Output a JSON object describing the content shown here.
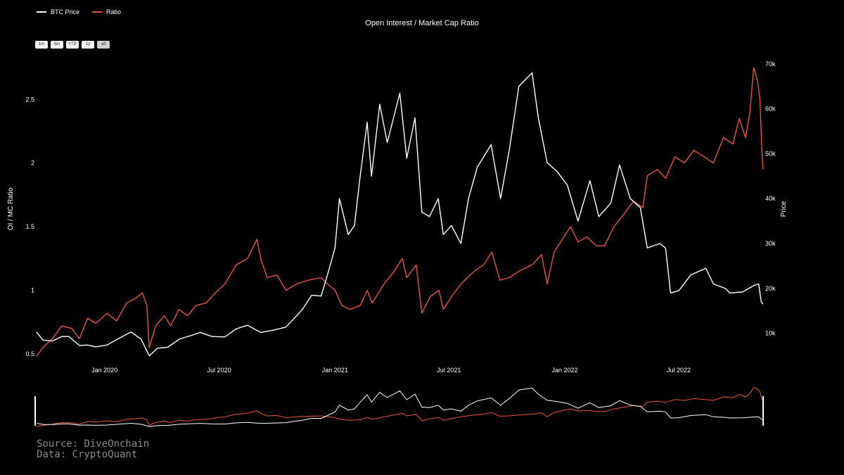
{
  "legend": {
    "btc_label": "BTC Price",
    "ratio_label": "Ratio",
    "btc_color": "#ffffff",
    "ratio_color": "#e8553d"
  },
  "range_buttons": [
    {
      "label": "1m",
      "active": false
    },
    {
      "label": "6m",
      "active": false
    },
    {
      "label": "YTD",
      "active": false
    },
    {
      "label": "1y",
      "active": false
    },
    {
      "label": "all",
      "active": true
    }
  ],
  "source": {
    "line1": "Source: DiveOnchain",
    "line2": "Data: CryptoQuant"
  },
  "chart_data": {
    "type": "line",
    "title": "Open Interest / Market Cap Ratio",
    "ylabel_left": "OI / MC Ratio",
    "ylabel_right": "Price",
    "ylim_left": [
      0.45,
      2.85
    ],
    "ylim_right": [
      4000,
      72000
    ],
    "xlim": [
      "2019-09-15",
      "2022-11-12"
    ],
    "x_ticks": [
      "Jan 2020",
      "Jul 2020",
      "Jan 2021",
      "Jul 2021",
      "Jan 2022",
      "Jul 2022"
    ],
    "y_ticks_left": [
      "0.5",
      "1",
      "1.5",
      "2",
      "2.5"
    ],
    "y_ticks_right": [
      "10k",
      "20k",
      "30k",
      "40k",
      "50k",
      "60k",
      "70k"
    ],
    "grid": false,
    "legend_position": "top-left",
    "has_range_slider": true,
    "series": [
      {
        "name": "BTC Price",
        "axis": "right",
        "color": "#ffffff",
        "points": [
          [
            "2019-09-15",
            10300
          ],
          [
            "2019-09-25",
            8500
          ],
          [
            "2019-10-10",
            8300
          ],
          [
            "2019-10-25",
            9300
          ],
          [
            "2019-11-05",
            9300
          ],
          [
            "2019-11-22",
            7300
          ],
          [
            "2019-12-05",
            7400
          ],
          [
            "2019-12-18",
            7000
          ],
          [
            "2020-01-05",
            7400
          ],
          [
            "2020-01-20",
            8600
          ],
          [
            "2020-02-12",
            10300
          ],
          [
            "2020-02-28",
            8700
          ],
          [
            "2020-03-12",
            5000
          ],
          [
            "2020-03-25",
            6700
          ],
          [
            "2020-04-10",
            6900
          ],
          [
            "2020-04-30",
            8800
          ],
          [
            "2020-05-15",
            9400
          ],
          [
            "2020-06-01",
            10200
          ],
          [
            "2020-06-20",
            9300
          ],
          [
            "2020-07-10",
            9200
          ],
          [
            "2020-07-28",
            11000
          ],
          [
            "2020-08-15",
            11800
          ],
          [
            "2020-09-05",
            10200
          ],
          [
            "2020-09-25",
            10700
          ],
          [
            "2020-10-15",
            11400
          ],
          [
            "2020-10-28",
            13300
          ],
          [
            "2020-11-10",
            15300
          ],
          [
            "2020-11-25",
            18500
          ],
          [
            "2020-12-10",
            18300
          ],
          [
            "2020-12-20",
            23000
          ],
          [
            "2021-01-01",
            29000
          ],
          [
            "2021-01-08",
            40000
          ],
          [
            "2021-01-22",
            32000
          ],
          [
            "2021-02-01",
            34000
          ],
          [
            "2021-02-10",
            45000
          ],
          [
            "2021-02-21",
            57000
          ],
          [
            "2021-02-28",
            45000
          ],
          [
            "2021-03-13",
            61000
          ],
          [
            "2021-03-25",
            52500
          ],
          [
            "2021-04-14",
            63500
          ],
          [
            "2021-04-25",
            49000
          ],
          [
            "2021-05-08",
            58000
          ],
          [
            "2021-05-19",
            37000
          ],
          [
            "2021-05-31",
            36000
          ],
          [
            "2021-06-14",
            40000
          ],
          [
            "2021-06-22",
            32000
          ],
          [
            "2021-07-05",
            34000
          ],
          [
            "2021-07-20",
            30000
          ],
          [
            "2021-08-01",
            40000
          ],
          [
            "2021-08-15",
            47000
          ],
          [
            "2021-09-06",
            52000
          ],
          [
            "2021-09-21",
            40000
          ],
          [
            "2021-10-05",
            51000
          ],
          [
            "2021-10-20",
            65000
          ],
          [
            "2021-11-10",
            68000
          ],
          [
            "2021-11-20",
            58000
          ],
          [
            "2021-12-04",
            48000
          ],
          [
            "2021-12-20",
            46000
          ],
          [
            "2022-01-05",
            43000
          ],
          [
            "2022-01-22",
            35000
          ],
          [
            "2022-02-10",
            44000
          ],
          [
            "2022-02-24",
            36000
          ],
          [
            "2022-03-15",
            39000
          ],
          [
            "2022-03-29",
            47500
          ],
          [
            "2022-04-15",
            40000
          ],
          [
            "2022-05-01",
            38000
          ],
          [
            "2022-05-12",
            29000
          ],
          [
            "2022-06-01",
            30000
          ],
          [
            "2022-06-10",
            29000
          ],
          [
            "2022-06-18",
            19000
          ],
          [
            "2022-07-01",
            19500
          ],
          [
            "2022-07-20",
            23000
          ],
          [
            "2022-08-13",
            24500
          ],
          [
            "2022-08-25",
            21000
          ],
          [
            "2022-09-13",
            20000
          ],
          [
            "2022-09-20",
            19000
          ],
          [
            "2022-10-10",
            19200
          ],
          [
            "2022-10-29",
            20700
          ],
          [
            "2022-11-05",
            21000
          ],
          [
            "2022-11-09",
            17000
          ],
          [
            "2022-11-12",
            16500
          ]
        ]
      },
      {
        "name": "Ratio",
        "axis": "left",
        "color": "#e8553d",
        "points": [
          [
            "2019-09-15",
            0.48
          ],
          [
            "2019-09-25",
            0.55
          ],
          [
            "2019-10-10",
            0.62
          ],
          [
            "2019-10-25",
            0.72
          ],
          [
            "2019-11-10",
            0.7
          ],
          [
            "2019-11-22",
            0.62
          ],
          [
            "2019-12-05",
            0.78
          ],
          [
            "2019-12-18",
            0.74
          ],
          [
            "2020-01-05",
            0.82
          ],
          [
            "2020-01-20",
            0.76
          ],
          [
            "2020-02-05",
            0.9
          ],
          [
            "2020-02-20",
            0.94
          ],
          [
            "2020-03-01",
            0.98
          ],
          [
            "2020-03-08",
            0.88
          ],
          [
            "2020-03-12",
            0.55
          ],
          [
            "2020-03-22",
            0.72
          ],
          [
            "2020-04-05",
            0.8
          ],
          [
            "2020-04-15",
            0.72
          ],
          [
            "2020-04-28",
            0.85
          ],
          [
            "2020-05-12",
            0.8
          ],
          [
            "2020-05-25",
            0.88
          ],
          [
            "2020-06-10",
            0.9
          ],
          [
            "2020-06-25",
            0.98
          ],
          [
            "2020-07-10",
            1.05
          ],
          [
            "2020-07-28",
            1.2
          ],
          [
            "2020-08-15",
            1.25
          ],
          [
            "2020-08-30",
            1.4
          ],
          [
            "2020-09-05",
            1.25
          ],
          [
            "2020-09-15",
            1.1
          ],
          [
            "2020-10-01",
            1.12
          ],
          [
            "2020-10-15",
            1.0
          ],
          [
            "2020-11-01",
            1.05
          ],
          [
            "2020-11-20",
            1.08
          ],
          [
            "2020-12-10",
            1.1
          ],
          [
            "2020-12-20",
            1.05
          ],
          [
            "2021-01-01",
            1.0
          ],
          [
            "2021-01-12",
            0.88
          ],
          [
            "2021-01-25",
            0.85
          ],
          [
            "2021-02-10",
            0.88
          ],
          [
            "2021-02-21",
            1.0
          ],
          [
            "2021-03-01",
            0.9
          ],
          [
            "2021-03-20",
            1.05
          ],
          [
            "2021-04-05",
            1.15
          ],
          [
            "2021-04-18",
            1.25
          ],
          [
            "2021-04-25",
            1.1
          ],
          [
            "2021-05-10",
            1.2
          ],
          [
            "2021-05-19",
            0.82
          ],
          [
            "2021-06-01",
            0.95
          ],
          [
            "2021-06-15",
            1.0
          ],
          [
            "2021-06-22",
            0.85
          ],
          [
            "2021-07-05",
            0.95
          ],
          [
            "2021-07-20",
            1.05
          ],
          [
            "2021-08-10",
            1.15
          ],
          [
            "2021-08-25",
            1.2
          ],
          [
            "2021-09-07",
            1.3
          ],
          [
            "2021-09-20",
            1.08
          ],
          [
            "2021-10-05",
            1.1
          ],
          [
            "2021-10-20",
            1.15
          ],
          [
            "2021-11-10",
            1.2
          ],
          [
            "2021-11-25",
            1.28
          ],
          [
            "2021-12-04",
            1.05
          ],
          [
            "2021-12-15",
            1.3
          ],
          [
            "2021-12-28",
            1.4
          ],
          [
            "2022-01-10",
            1.5
          ],
          [
            "2022-01-22",
            1.38
          ],
          [
            "2022-02-05",
            1.42
          ],
          [
            "2022-02-20",
            1.35
          ],
          [
            "2022-03-05",
            1.35
          ],
          [
            "2022-03-20",
            1.5
          ],
          [
            "2022-04-05",
            1.6
          ],
          [
            "2022-04-20",
            1.7
          ],
          [
            "2022-05-05",
            1.65
          ],
          [
            "2022-05-12",
            1.9
          ],
          [
            "2022-05-28",
            1.95
          ],
          [
            "2022-06-10",
            1.88
          ],
          [
            "2022-06-25",
            2.05
          ],
          [
            "2022-07-10",
            2.0
          ],
          [
            "2022-07-25",
            2.1
          ],
          [
            "2022-08-10",
            2.05
          ],
          [
            "2022-08-25",
            2.0
          ],
          [
            "2022-09-10",
            2.2
          ],
          [
            "2022-09-25",
            2.15
          ],
          [
            "2022-10-05",
            2.35
          ],
          [
            "2022-10-15",
            2.2
          ],
          [
            "2022-10-22",
            2.4
          ],
          [
            "2022-10-28",
            2.75
          ],
          [
            "2022-11-03",
            2.65
          ],
          [
            "2022-11-07",
            2.5
          ],
          [
            "2022-11-10",
            2.1
          ],
          [
            "2022-11-12",
            1.95
          ]
        ]
      }
    ]
  }
}
